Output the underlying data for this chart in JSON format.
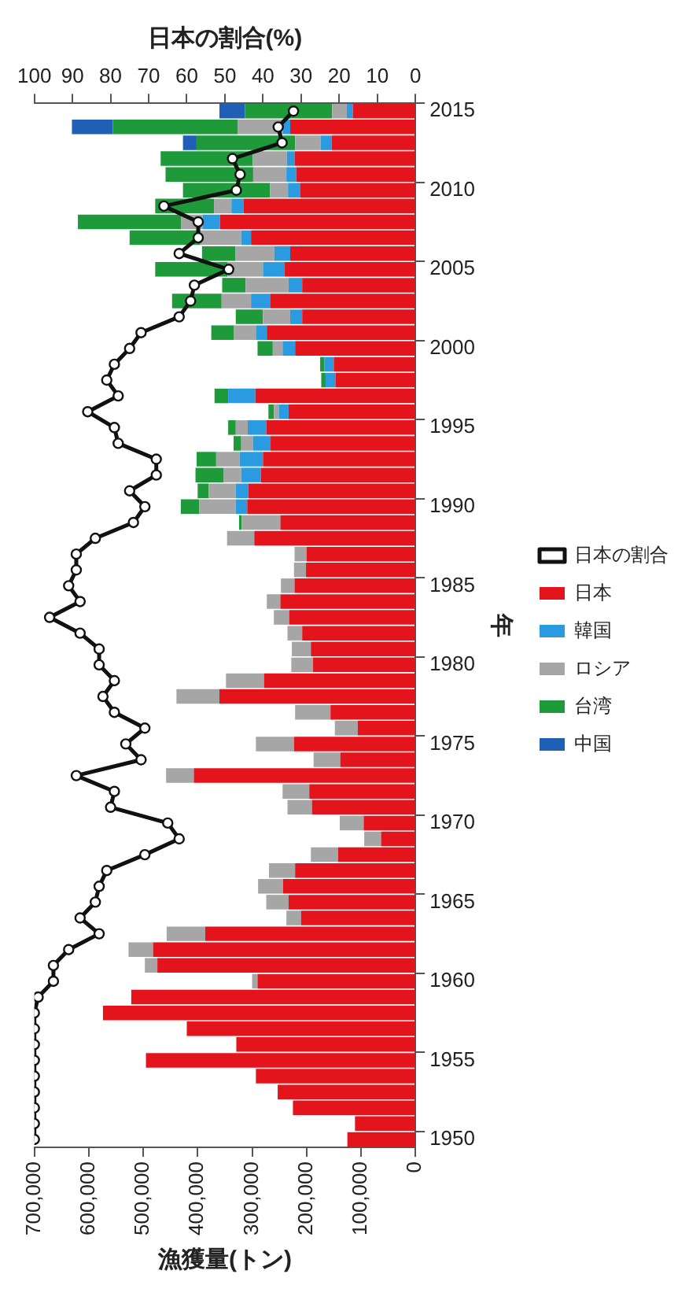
{
  "chart_data": {
    "type": "bar",
    "stacked": true,
    "orientation": "horizontal",
    "xlabel": "漁獲量(トン)",
    "ylabel": "年",
    "x2label": "日本の割合(%)",
    "legend": "right",
    "marker": "circle",
    "categories": [
      "2015",
      null,
      null,
      null,
      null,
      "2010",
      null,
      null,
      null,
      null,
      "2005",
      null,
      null,
      null,
      null,
      "2000",
      null,
      null,
      null,
      null,
      "1995",
      null,
      null,
      null,
      null,
      "1990",
      null,
      null,
      null,
      null,
      "1985",
      null,
      null,
      null,
      null,
      "1980",
      null,
      null,
      null,
      null,
      "1975",
      null,
      null,
      null,
      null,
      "1970",
      null,
      null,
      null,
      null,
      "1965",
      null,
      null,
      null,
      null,
      "1960",
      null,
      null,
      null,
      null,
      "1955",
      null,
      null,
      null,
      null,
      "1950"
    ],
    "xlim": [
      700000,
      0
    ],
    "xticks": [
      {
        "value": 700000,
        "label": "700,000"
      },
      {
        "value": 600000,
        "label": "600,000"
      },
      {
        "value": 500000,
        "label": "500,000"
      },
      {
        "value": 400000,
        "label": "400,000"
      },
      {
        "value": 300000,
        "label": "300,000"
      },
      {
        "value": 200000,
        "label": "200,000"
      },
      {
        "value": 100000,
        "label": "100,000"
      },
      0
    ],
    "x2lim": [
      100,
      0
    ],
    "x2ticks": [
      100,
      90,
      80,
      70,
      60,
      50,
      40,
      30,
      20,
      10,
      0
    ],
    "series": [
      {
        "name": "日本",
        "color": "#e3141b",
        "values": [
          115000,
          230000,
          154000,
          222000,
          219000,
          212000,
          316000,
          359000,
          302000,
          230000,
          240000,
          208000,
          267000,
          208000,
          273000,
          221000,
          150000,
          147000,
          294000,
          233000,
          274000,
          266000,
          280000,
          284000,
          307000,
          309000,
          248000,
          296000,
          200000,
          201000,
          222000,
          248000,
          232000,
          208000,
          192000,
          188000,
          278000,
          360000,
          156000,
          106000,
          223000,
          138000,
          407000,
          195000,
          190000,
          95000,
          63000,
          142000,
          221000,
          243000,
          233000,
          210000,
          386000,
          482000,
          474000,
          290000,
          522000,
          574000,
          420000,
          329000,
          495000,
          293000,
          253000,
          225000,
          111000,
          125000
        ]
      },
      {
        "name": "韓国",
        "color": "#2a9be0",
        "values": [
          11000,
          14000,
          20000,
          14000,
          18000,
          22000,
          22000,
          32000,
          18000,
          29000,
          40000,
          25000,
          35000,
          22000,
          20000,
          23000,
          17000,
          18000,
          50000,
          18000,
          34000,
          32000,
          43000,
          36000,
          23000,
          21000,
          null,
          null,
          null,
          null,
          null,
          null,
          null,
          null,
          null,
          null,
          null,
          null,
          null,
          null,
          null,
          null,
          null,
          null,
          null,
          null,
          null,
          null,
          null,
          null,
          null,
          null,
          null,
          null,
          null,
          null,
          null,
          null,
          null,
          null,
          null,
          null,
          null,
          null,
          null,
          null
        ]
      },
      {
        "name": "ロシア",
        "color": "#a6a6a6",
        "values": [
          27000,
          82000,
          47000,
          63000,
          61000,
          33000,
          32000,
          39000,
          75000,
          72000,
          65000,
          79000,
          54000,
          50000,
          41000,
          18000,
          null,
          null,
          null,
          9000,
          22000,
          22000,
          43000,
          32000,
          50000,
          67000,
          71000,
          50000,
          22000,
          22000,
          25000,
          25000,
          28000,
          27000,
          35000,
          40000,
          70000,
          79000,
          65000,
          42000,
          70000,
          49000,
          51000,
          49000,
          45000,
          44000,
          31000,
          50000,
          48000,
          46000,
          41000,
          27000,
          71000,
          45000,
          23000,
          10000,
          null,
          null,
          null,
          null,
          null,
          null,
          null,
          null,
          null,
          null
        ]
      },
      {
        "name": "台湾",
        "color": "#1e9a3a",
        "values": [
          160000,
          230000,
          181000,
          169000,
          161000,
          160000,
          108000,
          190000,
          130000,
          61000,
          133000,
          43000,
          91000,
          50000,
          41000,
          28000,
          8000,
          8000,
          25000,
          10000,
          14000,
          14000,
          36000,
          52000,
          20000,
          34000,
          5000,
          null,
          null,
          null,
          null,
          null,
          null,
          null,
          null,
          null,
          null,
          null,
          null,
          null,
          null,
          null,
          null,
          null,
          null,
          null,
          null,
          null,
          null,
          null,
          null,
          null,
          null,
          null,
          null,
          null,
          null,
          null,
          null,
          null,
          null,
          null,
          null,
          null,
          null,
          null
        ]
      },
      {
        "name": "中国",
        "color": "#1f5fb5",
        "values": [
          47000,
          75000,
          25000,
          null,
          null,
          null,
          null,
          null,
          null,
          null,
          null,
          null,
          null,
          null,
          null,
          null,
          null,
          null,
          null,
          null,
          null,
          null,
          null,
          null,
          null,
          null,
          null,
          null,
          null,
          null,
          null,
          null,
          null,
          null,
          null,
          null,
          null,
          null,
          null,
          null,
          null,
          null,
          null,
          null,
          null,
          null,
          null,
          null,
          null,
          null,
          null,
          null,
          null,
          null,
          null,
          null,
          null,
          null,
          null,
          null,
          null,
          null,
          null,
          null,
          null,
          null
        ]
      },
      {
        "name": "日本の割合",
        "type": "line",
        "axis": "x2",
        "color": "#111111",
        "line_style": "solid",
        "values": [
          32,
          36,
          35,
          48,
          46,
          47,
          66,
          57,
          57,
          62,
          49,
          58,
          59,
          62,
          72,
          75,
          79,
          81,
          78,
          86,
          79,
          78,
          68,
          68,
          75,
          71,
          74,
          84,
          89,
          89,
          91,
          88,
          96,
          88,
          83,
          83,
          79,
          82,
          79,
          71,
          76,
          72,
          89,
          79,
          80,
          65,
          62,
          71,
          81,
          83,
          84,
          88,
          83,
          91,
          95,
          95,
          99,
          100,
          100,
          100,
          100,
          100,
          100,
          100,
          100,
          100
        ]
      }
    ]
  }
}
